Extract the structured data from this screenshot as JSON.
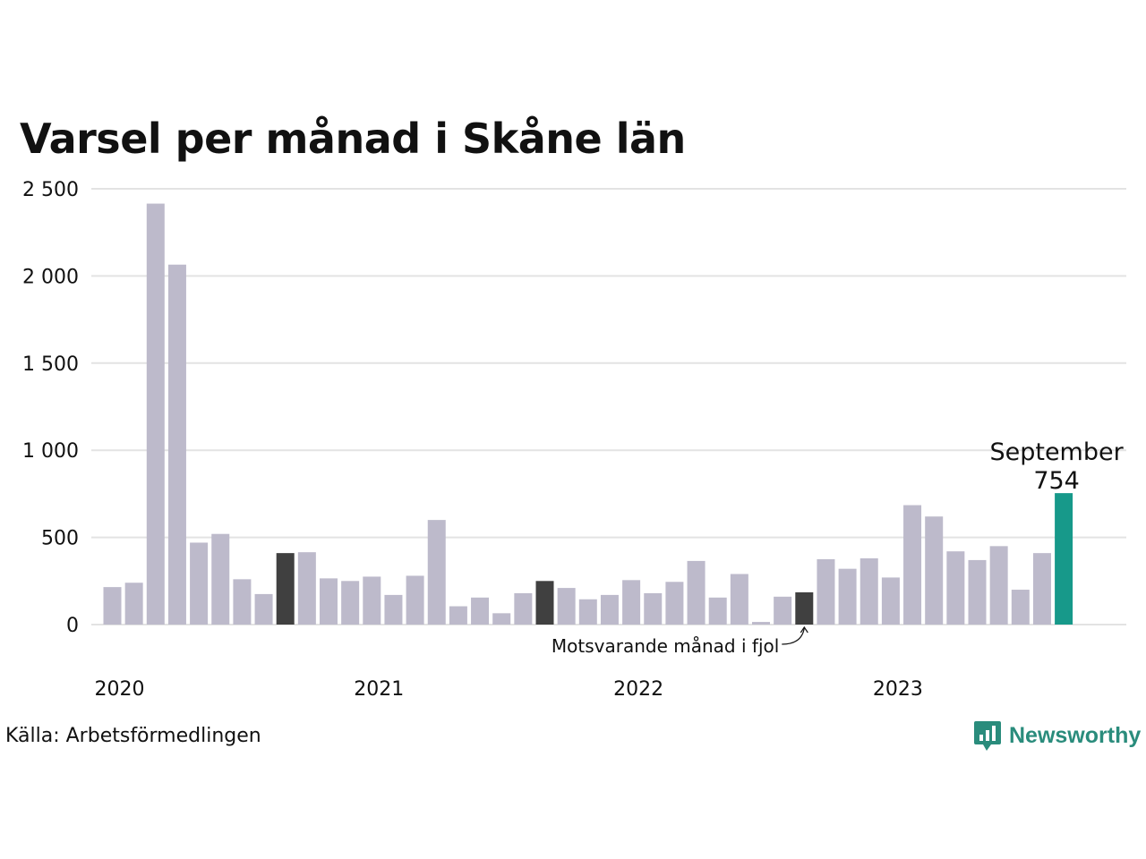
{
  "title": "Varsel per månad i Skåne län",
  "source": "Källa: Arbetsförmedlingen",
  "brand": {
    "name": "Newsworthy",
    "color": "#2a8c7c",
    "icon": "chart-bubble-icon"
  },
  "colors": {
    "default_bar": "#bdbacb",
    "previous_year_bar": "#404040",
    "current_bar": "#17998a",
    "grid": "#e3e3e3"
  },
  "chart_data": {
    "type": "bar",
    "title": "Varsel per månad i Skåne län",
    "xlabel": "",
    "ylabel": "",
    "ylim": [
      0,
      2500
    ],
    "yticks": [
      0,
      500,
      1000,
      1500,
      2000,
      2500
    ],
    "ytick_labels": [
      "0",
      "500",
      "1 000",
      "1 500",
      "2 000",
      "2 500"
    ],
    "year_labels": [
      {
        "label": "2020",
        "index": 0
      },
      {
        "label": "2021",
        "index": 12
      },
      {
        "label": "2022",
        "index": 24
      },
      {
        "label": "2023",
        "index": 36
      }
    ],
    "grid": true,
    "legend": "none",
    "values": [
      215,
      240,
      2415,
      2065,
      470,
      520,
      260,
      175,
      410,
      415,
      265,
      250,
      275,
      170,
      280,
      600,
      105,
      155,
      65,
      180,
      250,
      210,
      145,
      170,
      255,
      180,
      245,
      365,
      155,
      290,
      15,
      160,
      185,
      375,
      320,
      380,
      270,
      685,
      620,
      420,
      370,
      450,
      200,
      410,
      754
    ],
    "previous_year_indices": [
      8,
      20,
      32
    ],
    "highlight": {
      "index": 44,
      "month_label": "September",
      "value_label": "754"
    },
    "annotation": {
      "text": "Motsvarande månad i fjol",
      "index": 32
    }
  }
}
